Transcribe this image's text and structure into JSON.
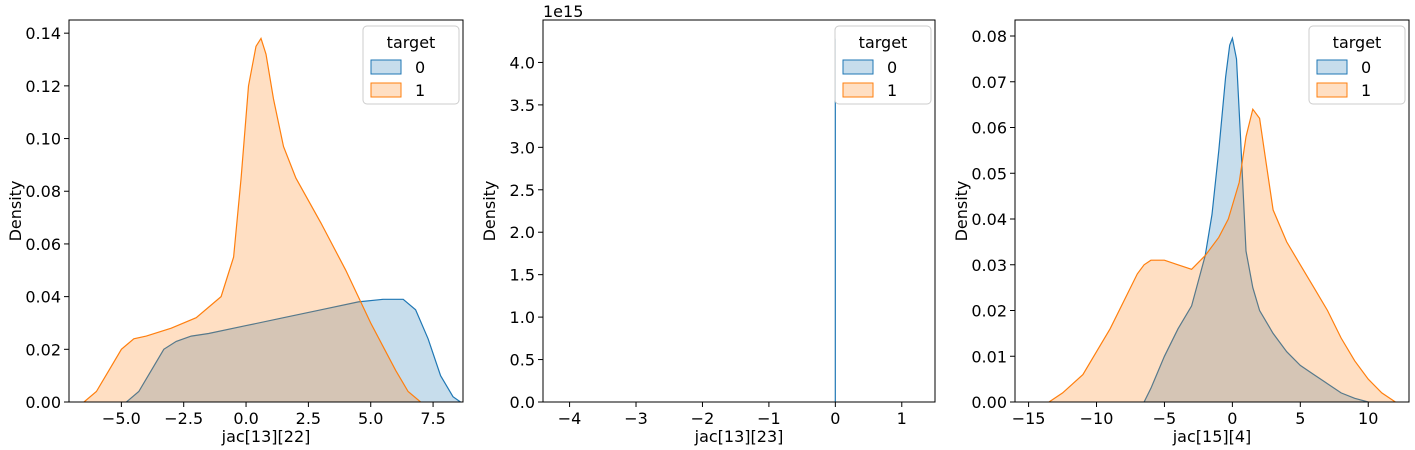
{
  "chart_data": [
    {
      "type": "area",
      "xlabel": "jac[13][22]",
      "ylabel": "Density",
      "xlim": [
        -7.1,
        8.7
      ],
      "ylim": [
        0,
        0.145
      ],
      "xticks": [
        -5.0,
        -2.5,
        0.0,
        2.5,
        5.0,
        7.5
      ],
      "xtick_labels": [
        "−5.0",
        "−2.5",
        "0.0",
        "2.5",
        "5.0",
        "7.5"
      ],
      "yticks": [
        0,
        0.02,
        0.04,
        0.06,
        0.08,
        0.1,
        0.12,
        0.14
      ],
      "ytick_labels": [
        "0.00",
        "0.02",
        "0.04",
        "0.06",
        "0.08",
        "0.10",
        "0.12",
        "0.14"
      ],
      "legend": {
        "title": "target",
        "labels": [
          "0",
          "1"
        ],
        "placement": "top-right"
      },
      "series": [
        {
          "name": "0",
          "color": "#1f77b4",
          "x": [
            -4.8,
            -4.3,
            -3.8,
            -3.3,
            -2.8,
            -2.2,
            -1.5,
            0,
            1.5,
            3.0,
            4.5,
            5.5,
            6.3,
            6.8,
            7.3,
            7.8,
            8.3,
            8.6
          ],
          "y": [
            0,
            0.004,
            0.012,
            0.02,
            0.023,
            0.025,
            0.026,
            0.029,
            0.032,
            0.035,
            0.038,
            0.039,
            0.039,
            0.035,
            0.024,
            0.01,
            0.002,
            0
          ]
        },
        {
          "name": "1",
          "color": "#ff7f0e",
          "x": [
            -6.5,
            -6.0,
            -5.5,
            -5.0,
            -4.5,
            -4.0,
            -3.0,
            -2.0,
            -1.0,
            -0.5,
            -0.2,
            0.1,
            0.4,
            0.6,
            0.8,
            1.1,
            1.5,
            2.0,
            3.0,
            4.0,
            5.0,
            6.0,
            6.5,
            7.0
          ],
          "y": [
            0,
            0.004,
            0.012,
            0.02,
            0.024,
            0.025,
            0.028,
            0.032,
            0.04,
            0.055,
            0.085,
            0.12,
            0.135,
            0.138,
            0.132,
            0.115,
            0.097,
            0.085,
            0.068,
            0.05,
            0.03,
            0.012,
            0.004,
            0
          ]
        }
      ]
    },
    {
      "type": "area",
      "xlabel": "jac[13][23]",
      "ylabel": "Density",
      "offset_text": "1e15",
      "xlim": [
        -4.4,
        1.5
      ],
      "ylim": [
        0,
        4.5
      ],
      "xticks": [
        -4,
        -3,
        -2,
        -1,
        0,
        1
      ],
      "xtick_labels": [
        "−4",
        "−3",
        "−2",
        "−1",
        "0",
        "1"
      ],
      "yticks": [
        0,
        0.5,
        1.0,
        1.5,
        2.0,
        2.5,
        3.0,
        3.5,
        4.0
      ],
      "ytick_labels": [
        "0.0",
        "0.5",
        "1.0",
        "1.5",
        "2.0",
        "2.5",
        "3.0",
        "3.5",
        "4.0"
      ],
      "legend": {
        "title": "target",
        "labels": [
          "0",
          "1"
        ],
        "placement": "top-right"
      },
      "series": [
        {
          "name": "0",
          "color": "#1f77b4",
          "x": [
            0,
            0,
            0
          ],
          "y": [
            0,
            4.28,
            0
          ]
        },
        {
          "name": "1",
          "color": "#ff7f0e",
          "x": [],
          "y": []
        }
      ]
    },
    {
      "type": "area",
      "xlabel": "jac[15][4]",
      "ylabel": "Density",
      "xlim": [
        -16,
        13
      ],
      "ylim": [
        0,
        0.0835
      ],
      "xticks": [
        -15,
        -10,
        -5,
        0,
        5,
        10
      ],
      "xtick_labels": [
        "−15",
        "−10",
        "−5",
        "0",
        "5",
        "10"
      ],
      "yticks": [
        0,
        0.01,
        0.02,
        0.03,
        0.04,
        0.05,
        0.06,
        0.07,
        0.08
      ],
      "ytick_labels": [
        "0.00",
        "0.01",
        "0.02",
        "0.03",
        "0.04",
        "0.05",
        "0.06",
        "0.07",
        "0.08"
      ],
      "legend": {
        "title": "target",
        "labels": [
          "0",
          "1"
        ],
        "placement": "top-right"
      },
      "series": [
        {
          "name": "0",
          "color": "#1f77b4",
          "x": [
            -6.5,
            -6.0,
            -5.0,
            -4.0,
            -3.0,
            -2.0,
            -1.5,
            -1.0,
            -0.5,
            -0.2,
            0,
            0.3,
            0.6,
            1.0,
            1.5,
            2.0,
            3.0,
            4.0,
            5.0,
            6.0,
            7.0,
            8.0,
            9.0,
            10.0
          ],
          "y": [
            0,
            0.003,
            0.01,
            0.016,
            0.021,
            0.032,
            0.041,
            0.055,
            0.071,
            0.078,
            0.0795,
            0.075,
            0.058,
            0.033,
            0.025,
            0.02,
            0.015,
            0.011,
            0.008,
            0.006,
            0.004,
            0.002,
            0.0008,
            0
          ]
        },
        {
          "name": "1",
          "color": "#ff7f0e",
          "x": [
            -13.5,
            -12.5,
            -11,
            -10,
            -9,
            -8,
            -7,
            -6.5,
            -6,
            -5,
            -4,
            -3,
            -2,
            -1,
            -0.3,
            0.5,
            1.0,
            1.5,
            2.0,
            2.5,
            3.0,
            4.0,
            5.0,
            6.0,
            7.0,
            8.0,
            9.0,
            10.0,
            11.0,
            12.0
          ],
          "y": [
            0,
            0.002,
            0.006,
            0.011,
            0.016,
            0.022,
            0.028,
            0.03,
            0.031,
            0.031,
            0.03,
            0.029,
            0.032,
            0.036,
            0.04,
            0.048,
            0.058,
            0.064,
            0.062,
            0.052,
            0.042,
            0.035,
            0.03,
            0.025,
            0.02,
            0.014,
            0.009,
            0.005,
            0.002,
            0
          ]
        }
      ]
    }
  ]
}
